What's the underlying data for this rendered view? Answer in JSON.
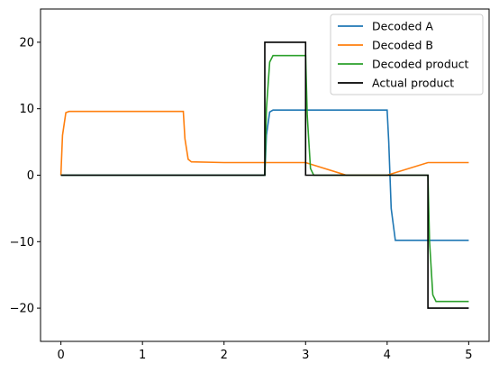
{
  "chart_data": {
    "type": "line",
    "title": "",
    "xlabel": "",
    "ylabel": "",
    "xlim": [
      -0.25,
      5.25
    ],
    "ylim": [
      -25,
      25
    ],
    "xticks": [
      0,
      1,
      2,
      3,
      4,
      5
    ],
    "yticks": [
      -20,
      -10,
      0,
      10,
      20
    ],
    "x_tick_labels": [
      "0",
      "1",
      "2",
      "3",
      "4",
      "5"
    ],
    "y_tick_labels": [
      "−20",
      "−10",
      "0",
      "10",
      "20"
    ],
    "grid": false,
    "legend_position": "top-right",
    "series": [
      {
        "name": "Decoded A",
        "color": "#1f77b4",
        "x": [
          0.0,
          0.3,
          0.6,
          0.9,
          1.2,
          1.5,
          1.8,
          2.1,
          2.4,
          2.5,
          2.52,
          2.56,
          2.6,
          3.0,
          3.5,
          4.0,
          4.02,
          4.05,
          4.1,
          4.5,
          5.0
        ],
        "y": [
          0.0,
          0.0,
          0.0,
          0.0,
          0.0,
          0.0,
          0.0,
          0.0,
          0.0,
          0.0,
          6.0,
          9.5,
          9.8,
          9.8,
          9.8,
          9.8,
          5.0,
          -5.0,
          -9.8,
          -9.8,
          -9.8
        ]
      },
      {
        "name": "Decoded B",
        "color": "#ff7f0e",
        "x": [
          0.0,
          0.02,
          0.06,
          0.1,
          0.5,
          1.0,
          1.5,
          1.52,
          1.56,
          1.6,
          2.0,
          2.5,
          3.0,
          3.5,
          4.0,
          4.5,
          5.0
        ],
        "y": [
          0.0,
          6.0,
          9.4,
          9.6,
          9.6,
          9.6,
          9.6,
          5.5,
          2.4,
          2.0,
          1.9,
          1.9,
          1.9,
          0.0,
          0.0,
          1.9,
          1.9
        ]
      },
      {
        "name": "Decoded product",
        "color": "#2ca02c",
        "x": [
          0.0,
          0.5,
          1.0,
          1.5,
          2.0,
          2.5,
          2.52,
          2.56,
          2.6,
          2.8,
          3.0,
          3.02,
          3.06,
          3.1,
          3.5,
          4.0,
          4.5,
          4.52,
          4.56,
          4.6,
          4.8,
          5.0
        ],
        "y": [
          0.0,
          0.0,
          0.0,
          0.0,
          0.0,
          0.0,
          10.0,
          17.0,
          18.0,
          18.0,
          18.0,
          9.0,
          1.0,
          0.0,
          0.0,
          0.0,
          0.0,
          -10.0,
          -18.0,
          -19.0,
          -19.0,
          -19.0
        ]
      },
      {
        "name": "Actual product",
        "color": "#000000",
        "x": [
          0.0,
          2.5,
          2.5,
          3.0,
          3.0,
          4.5,
          4.5,
          5.0
        ],
        "y": [
          0,
          0,
          20,
          20,
          0,
          0,
          -20,
          -20
        ]
      }
    ]
  }
}
